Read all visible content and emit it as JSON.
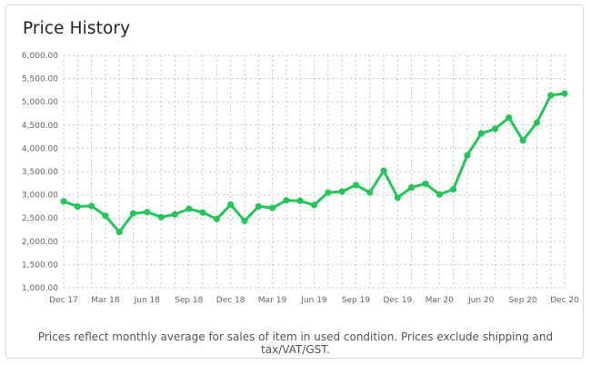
{
  "title": "Price History",
  "footnote": "Prices reflect monthly average for sales of item in used condition. Prices exclude shipping and tax/VAT/GST.",
  "colors": {
    "line": "#25c55a",
    "grid": "#c8c8c8",
    "text": "#666666"
  },
  "chart_data": {
    "type": "line",
    "title": "Price History",
    "xlabel": "",
    "ylabel": "",
    "ylim": [
      1000,
      6000
    ],
    "yticks": [
      "6,000.00",
      "5,500.00",
      "5,000.00",
      "4,500.00",
      "4,000.00",
      "3,500.00",
      "3,000.00",
      "2,500.00",
      "2,000.00",
      "1,500.00",
      "1,000.00"
    ],
    "xticks": [
      "Dec 17",
      "Mar 18",
      "Jun 18",
      "Sep 18",
      "Dec 18",
      "Mar 19",
      "Jun 19",
      "Sep 19",
      "Dec 19",
      "Mar 20",
      "Jun 20",
      "Sep 20",
      "Dec 20"
    ],
    "grid": true,
    "legend": "none",
    "x": [
      "Dec 17",
      "Jan 18",
      "Feb 18",
      "Mar 18",
      "Apr 18",
      "May 18",
      "Jun 18",
      "Jul 18",
      "Aug 18",
      "Sep 18",
      "Oct 18",
      "Nov 18",
      "Dec 18",
      "Jan 19",
      "Feb 19",
      "Mar 19",
      "Apr 19",
      "May 19",
      "Jun 19",
      "Jul 19",
      "Aug 19",
      "Sep 19",
      "Oct 19",
      "Nov 19",
      "Dec 19",
      "Jan 20",
      "Feb 20",
      "Mar 20",
      "Apr 20",
      "May 20",
      "Jun 20",
      "Jul 20",
      "Aug 20",
      "Sep 20",
      "Oct 20",
      "Nov 20",
      "Dec 20"
    ],
    "series": [
      {
        "values": [
          2860,
          2750,
          2760,
          2550,
          2200,
          2600,
          2630,
          2520,
          2580,
          2700,
          2620,
          2480,
          2790,
          2440,
          2750,
          2720,
          2880,
          2870,
          2780,
          3050,
          3070,
          3210,
          3050,
          3520,
          2940,
          3160,
          3240,
          3010,
          3120,
          3850,
          4320,
          4420,
          4660,
          4170,
          4550,
          5140,
          5180
        ]
      }
    ]
  }
}
